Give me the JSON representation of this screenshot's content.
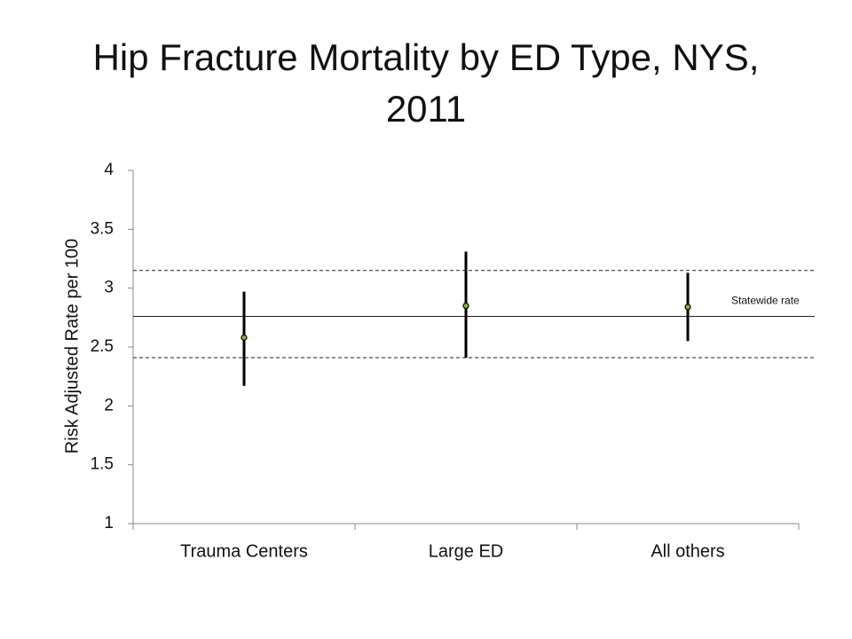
{
  "chart_data": {
    "type": "errorbar",
    "title": "Hip Fracture Mortality by ED Type, NYS, 2011",
    "y_label": "Risk Adjusted Rate per 100",
    "categories": [
      "Trauma Centers",
      "Large ED",
      "All others"
    ],
    "values": [
      2.58,
      2.85,
      2.84
    ],
    "lower": [
      2.17,
      2.41,
      2.55
    ],
    "upper": [
      2.97,
      3.31,
      3.13
    ],
    "color": "#8db33a",
    "ylim": [
      1,
      4
    ],
    "yticks": [
      1,
      1.5,
      2,
      2.5,
      3,
      3.5,
      4
    ],
    "grid": false,
    "reference_lines": [
      {
        "label": "Statewide rate",
        "value": 2.76,
        "style": "solid"
      },
      {
        "value": 3.15,
        "style": "dashed"
      },
      {
        "value": 2.41,
        "style": "dashed"
      }
    ]
  }
}
